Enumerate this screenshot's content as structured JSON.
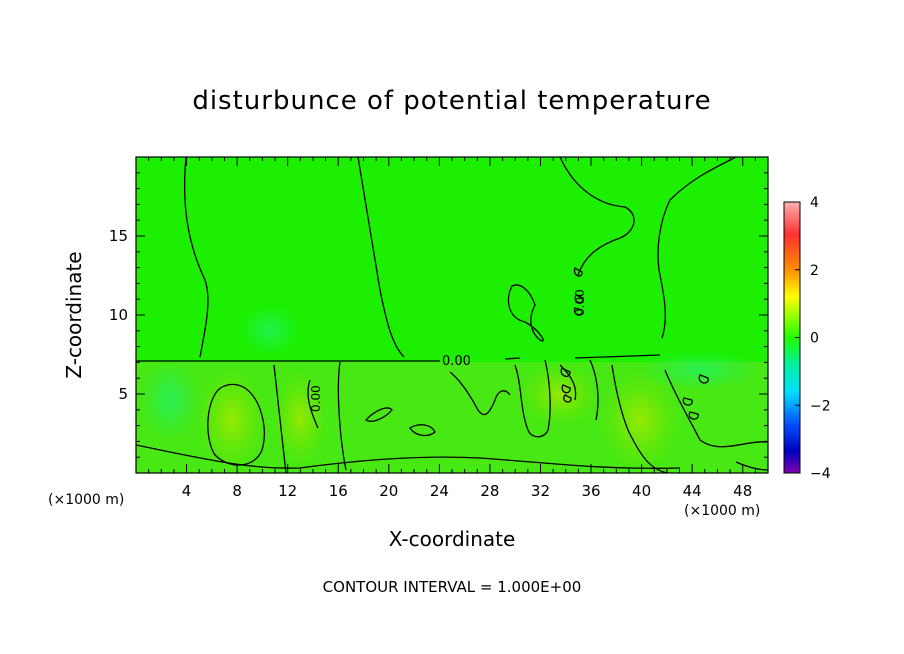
{
  "chart_data": {
    "type": "heatmap",
    "title": "disturbunce of potential temperature",
    "xlabel": "X-coordinate",
    "ylabel": "Z-coordinate",
    "x_unit_labels": [
      "(×1000 m)",
      "(×1000 m)"
    ],
    "footer": "CONTOUR INTERVAL = 1.000E+00",
    "xlim": [
      0,
      50
    ],
    "ylim": [
      0,
      20
    ],
    "x_ticks": [
      4,
      8,
      12,
      16,
      20,
      24,
      28,
      32,
      36,
      40,
      44,
      48
    ],
    "y_ticks": [
      5,
      10,
      15
    ],
    "contour_interval": 1.0,
    "contour_labels": [
      {
        "text": "0.00",
        "x": 26.0,
        "y": 7.3
      },
      {
        "text": "0.00",
        "x": 14.0,
        "y": 6.0
      },
      {
        "text": "0.00",
        "x": 35.0,
        "y": 11.0
      }
    ],
    "colorbar": {
      "range": [
        -4,
        4
      ],
      "ticks": [
        4,
        2,
        0,
        -2,
        -4
      ],
      "tick_labels": [
        "4",
        "2",
        "0",
        "−2",
        "−4"
      ],
      "colors": [
        "#ff9a9a",
        "#ff2a2a",
        "#ff8c00",
        "#ffff00",
        "#33ff00",
        "#00e8a0",
        "#00e6ff",
        "#0060ff",
        "#0000c0",
        "#7a00b0"
      ]
    },
    "grid": false,
    "field_base_color": "#1cf000"
  }
}
